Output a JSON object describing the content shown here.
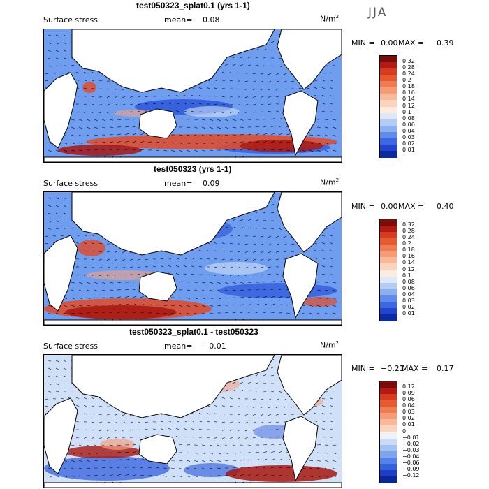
{
  "season": "JJA",
  "panels": [
    {
      "title": "test050323_splat0.1 (yrs 1-1)",
      "field": "Surface stress",
      "mean_label": "mean=",
      "mean_value": "0.08",
      "units": "N/m",
      "units_exp": "2",
      "min_label": "MIN =",
      "min_value": "0.00",
      "max_label": "MAX =",
      "max_value": "0.39",
      "colorbar_ticks": [
        "0.32",
        "0.28",
        "0.24",
        "0.2",
        "0.18",
        "0.16",
        "0.14",
        "0.12",
        "0.1",
        "0.08",
        "0.06",
        "0.04",
        "0.03",
        "0.02",
        "0.01"
      ],
      "colorbar_colors": [
        "#7a0c0c",
        "#b41a14",
        "#d53b1e",
        "#e65a30",
        "#ef7b50",
        "#f59c76",
        "#f8b99a",
        "#fad4bd",
        "#fdebdf",
        "#dde8f8",
        "#b4cdf4",
        "#8db0f0",
        "#5f8cec",
        "#3a68e2",
        "#2244cc",
        "#0c2aa0"
      ]
    },
    {
      "title": "test050323 (yrs 1-1)",
      "field": "Surface stress",
      "mean_label": "mean=",
      "mean_value": "0.09",
      "units": "N/m",
      "units_exp": "2",
      "min_label": "MIN =",
      "min_value": "0.00",
      "max_label": "MAX =",
      "max_value": "0.40",
      "colorbar_ticks": [
        "0.32",
        "0.28",
        "0.24",
        "0.2",
        "0.18",
        "0.16",
        "0.14",
        "0.12",
        "0.1",
        "0.08",
        "0.06",
        "0.04",
        "0.03",
        "0.02",
        "0.01"
      ],
      "colorbar_colors": [
        "#7a0c0c",
        "#b41a14",
        "#d53b1e",
        "#e65a30",
        "#ef7b50",
        "#f59c76",
        "#f8b99a",
        "#fad4bd",
        "#fdebdf",
        "#dde8f8",
        "#b4cdf4",
        "#8db0f0",
        "#5f8cec",
        "#3a68e2",
        "#2244cc",
        "#0c2aa0"
      ]
    },
    {
      "title": "test050323_splat0.1 - test050323",
      "field": "Surface stress",
      "mean_label": "mean=",
      "mean_value": "−0.01",
      "units": "N/m",
      "units_exp": "2",
      "min_label": "MIN =",
      "min_value": "−0.21",
      "max_label": "MAX =",
      "max_value": "0.17",
      "colorbar_ticks": [
        "0.12",
        "0.09",
        "0.06",
        "0.04",
        "0.03",
        "0.02",
        "0.01",
        "0",
        "−0.01",
        "−0.02",
        "−0.03",
        "−0.04",
        "−0.06",
        "−0.09",
        "−0.12"
      ],
      "colorbar_colors": [
        "#7a0c0c",
        "#b41a14",
        "#d53b1e",
        "#e65a30",
        "#ef7b50",
        "#f59c76",
        "#f8b99a",
        "#fad4bd",
        "#eef3fb",
        "#c9dbf6",
        "#a4c2f2",
        "#7ea4ee",
        "#5582e8",
        "#3560dc",
        "#1d3ec4",
        "#0a2694"
      ]
    }
  ],
  "map_colors": {
    "land": "#ffffff",
    "coast": "#000000",
    "ocean_low": "#cfe0f7",
    "ocean_mid": "#6f9df0",
    "ocean_high": "#2a52d8",
    "stress_high": "#e34a26",
    "stress_max": "#a8160f",
    "diff_pos": "#f4a184",
    "diff_neg": "#3d68e0"
  }
}
